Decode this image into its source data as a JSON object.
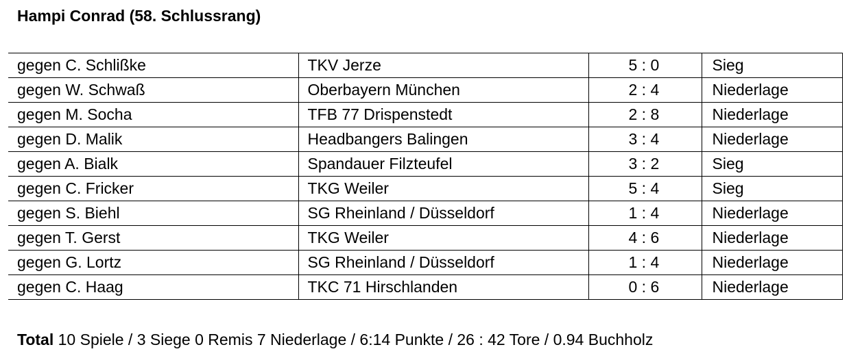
{
  "title": "Hampi Conrad (58. Schlussrang)",
  "matches": [
    {
      "opponent": "gegen C. Schlißke",
      "team": "TKV Jerze",
      "score": "5 : 0",
      "result": "Sieg"
    },
    {
      "opponent": "gegen W. Schwaß",
      "team": "Oberbayern München",
      "score": "2 : 4",
      "result": "Niederlage"
    },
    {
      "opponent": "gegen M. Socha",
      "team": "TFB 77 Drispenstedt",
      "score": "2 : 8",
      "result": "Niederlage"
    },
    {
      "opponent": "gegen D. Malik",
      "team": "Headbangers Balingen",
      "score": "3 : 4",
      "result": "Niederlage"
    },
    {
      "opponent": "gegen A. Bialk",
      "team": "Spandauer Filzteufel",
      "score": "3 : 2",
      "result": "Sieg"
    },
    {
      "opponent": "gegen C. Fricker",
      "team": "TKG Weiler",
      "score": "5 : 4",
      "result": "Sieg"
    },
    {
      "opponent": "gegen S. Biehl",
      "team": "SG Rheinland / Düsseldorf",
      "score": "1 : 4",
      "result": "Niederlage"
    },
    {
      "opponent": "gegen T. Gerst",
      "team": "TKG Weiler",
      "score": "4 : 6",
      "result": "Niederlage"
    },
    {
      "opponent": "gegen G. Lortz",
      "team": "SG Rheinland / Düsseldorf",
      "score": "1 : 4",
      "result": "Niederlage"
    },
    {
      "opponent": "gegen C. Haag",
      "team": "TKC 71 Hirschlanden",
      "score": "0 : 6",
      "result": "Niederlage"
    }
  ],
  "total": {
    "label": "Total",
    "text": " 10 Spiele / 3 Siege 0 Remis 7 Niederlage / 6:14 Punkte / 26 : 42 Tore / 0.94 Buchholz"
  }
}
